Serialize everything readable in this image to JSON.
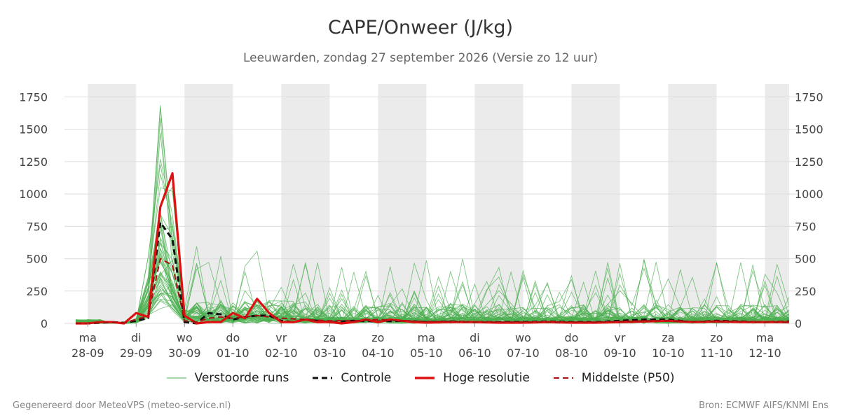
{
  "title": "CAPE/Onweer (J/kg)",
  "subtitle": "Leeuwarden, zondag 27 september 2026 (Versie zo 12 uur)",
  "footer": {
    "left": "Gegenereerd door MeteoVPS (meteo-service.nl)",
    "right": "Bron: ECMWF AIFS/KNMI Ens"
  },
  "legend": [
    {
      "label": "Verstoorde runs",
      "color": "#4caf50",
      "style": "thin"
    },
    {
      "label": "Controle",
      "color": "#111111",
      "style": "dashed"
    },
    {
      "label": "Hoge resolutie",
      "color": "#dd1111",
      "style": "thick"
    },
    {
      "label": "Middelste (P50)",
      "color": "#aa1111",
      "style": "dashed"
    }
  ],
  "chart_data": {
    "type": "line",
    "ylim": [
      0,
      1850
    ],
    "yticks": [
      0,
      250,
      500,
      750,
      1000,
      1250,
      1500,
      1750
    ],
    "x_unit": "days since 28-09",
    "xlim": [
      -0.25,
      14.5
    ],
    "xticks": [
      {
        "x": 0,
        "day": "ma",
        "date": "28-09"
      },
      {
        "x": 1,
        "day": "di",
        "date": "29-09"
      },
      {
        "x": 2,
        "day": "wo",
        "date": "30-09"
      },
      {
        "x": 3,
        "day": "do",
        "date": "01-10"
      },
      {
        "x": 4,
        "day": "vr",
        "date": "02-10"
      },
      {
        "x": 5,
        "day": "za",
        "date": "03-10"
      },
      {
        "x": 6,
        "day": "zo",
        "date": "04-10"
      },
      {
        "x": 7,
        "day": "ma",
        "date": "05-10"
      },
      {
        "x": 8,
        "day": "di",
        "date": "06-10"
      },
      {
        "x": 9,
        "day": "wo",
        "date": "07-10"
      },
      {
        "x": 10,
        "day": "do",
        "date": "08-10"
      },
      {
        "x": 11,
        "day": "vr",
        "date": "09-10"
      },
      {
        "x": 12,
        "day": "za",
        "date": "10-10"
      },
      {
        "x": 13,
        "day": "zo",
        "date": "11-10"
      },
      {
        "x": 14,
        "day": "ma",
        "date": "12-10"
      }
    ],
    "shaded_days": [
      [
        0,
        1
      ],
      [
        2,
        3
      ],
      [
        4,
        5
      ],
      [
        6,
        7
      ],
      [
        8,
        9
      ],
      [
        10,
        11
      ],
      [
        12,
        13
      ],
      [
        14,
        14.5
      ]
    ],
    "grid": true,
    "legend_position": "bottom",
    "colors": {
      "ensemble": "#4caf50",
      "control": "#111111",
      "hires": "#dd1111",
      "median": "#aa1111",
      "shade": "#ebebeb",
      "grid": "#dcdcdc"
    },
    "series": [
      {
        "name": "Controle",
        "x": [
          -0.25,
          0,
          0.25,
          0.5,
          0.75,
          1,
          1.25,
          1.5,
          1.75,
          2,
          2.25,
          2.5,
          2.75,
          3,
          3.25,
          3.5,
          3.75,
          4,
          4.25,
          4.5,
          4.75,
          5,
          5.5,
          6,
          6.5,
          7,
          7.5,
          8,
          8.5,
          9,
          9.5,
          10,
          10.5,
          11,
          11.5,
          12,
          12.5,
          13,
          13.5,
          14,
          14.5
        ],
        "y": [
          0,
          0,
          5,
          10,
          5,
          20,
          40,
          780,
          650,
          10,
          0,
          80,
          70,
          30,
          50,
          60,
          60,
          20,
          10,
          30,
          20,
          10,
          20,
          15,
          20,
          10,
          15,
          10,
          10,
          10,
          15,
          10,
          10,
          20,
          30,
          30,
          10,
          20,
          15,
          10,
          15
        ]
      },
      {
        "name": "Hoge resolutie",
        "x": [
          -0.25,
          0,
          0.25,
          0.5,
          0.75,
          1,
          1.25,
          1.5,
          1.75,
          2,
          2.25,
          2.5,
          2.75,
          3,
          3.25,
          3.5,
          3.75,
          4,
          4.25,
          4.5,
          4.75,
          5,
          5.25,
          5.5,
          5.75,
          6,
          6.25,
          6.5,
          6.75,
          7,
          7.5,
          8,
          8.5,
          9,
          9.5,
          10,
          10.5,
          11,
          11.5,
          12,
          12.5,
          13,
          13.5,
          14,
          14.5
        ],
        "y": [
          0,
          0,
          10,
          10,
          0,
          80,
          50,
          900,
          1160,
          60,
          0,
          10,
          10,
          80,
          40,
          190,
          80,
          10,
          10,
          30,
          10,
          10,
          0,
          10,
          30,
          10,
          30,
          20,
          10,
          5,
          10,
          10,
          5,
          5,
          10,
          5,
          5,
          10,
          15,
          20,
          10,
          15,
          10,
          10,
          10
        ]
      },
      {
        "name": "Middelste (P50)",
        "x": [
          -0.25,
          0,
          0.25,
          0.5,
          0.75,
          1,
          1.25,
          1.5,
          1.75,
          2,
          2.25,
          2.5,
          2.75,
          3,
          3.5,
          4,
          4.5,
          5,
          5.5,
          6,
          6.5,
          7,
          7.5,
          8,
          8.5,
          9,
          9.5,
          10,
          10.5,
          11,
          11.5,
          12,
          12.5,
          13,
          13.5,
          14,
          14.5
        ],
        "y": [
          0,
          0,
          5,
          10,
          5,
          30,
          60,
          500,
          450,
          20,
          10,
          40,
          50,
          40,
          60,
          40,
          30,
          20,
          20,
          30,
          20,
          15,
          15,
          10,
          10,
          10,
          10,
          10,
          10,
          15,
          20,
          20,
          15,
          15,
          15,
          10,
          10
        ]
      }
    ]
  }
}
